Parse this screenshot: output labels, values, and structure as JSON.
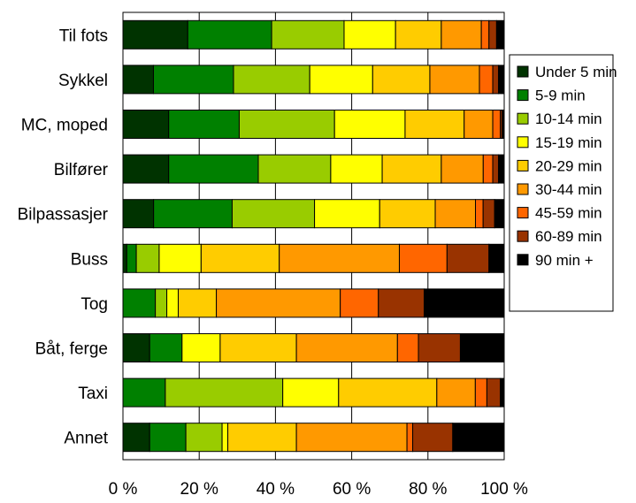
{
  "chart_data": {
    "type": "bar",
    "orientation": "horizontal",
    "stacked": "percent",
    "categories": [
      "Til fots",
      "Sykkel",
      "MC, moped",
      "Bilfører",
      "Bilpassasjer",
      "Buss",
      "Tog",
      "Båt, ferge",
      "Taxi",
      "Annet"
    ],
    "x_ticks": [
      "0 %",
      "20 %",
      "40 %",
      "60 %",
      "80 %",
      "100 %"
    ],
    "xlim": [
      0,
      100
    ],
    "grid": "vertical",
    "legend_position": "right",
    "series": [
      {
        "name": "Under 5 min",
        "color": "#003300",
        "values": [
          17,
          8,
          12,
          12,
          8,
          1,
          0,
          7,
          0,
          7
        ]
      },
      {
        "name": "5-9 min",
        "color": "#008000",
        "values": [
          22,
          21,
          18.5,
          23.5,
          20.5,
          2.5,
          8.5,
          8.5,
          11,
          9.5
        ]
      },
      {
        "name": "10-14 min",
        "color": "#99cc00",
        "values": [
          19,
          20,
          25,
          19,
          21.5,
          6,
          3,
          0,
          30.5,
          9.5
        ]
      },
      {
        "name": "15-19 min",
        "color": "#ffff00",
        "values": [
          13.5,
          16.5,
          18.5,
          13.5,
          17,
          11,
          3,
          10,
          14.5,
          1.5
        ]
      },
      {
        "name": "20-29 min",
        "color": "#ffcc00",
        "values": [
          12,
          15,
          15.5,
          15.5,
          14.5,
          20.5,
          10,
          20,
          25.5,
          18
        ]
      },
      {
        "name": "30-44 min",
        "color": "#ff9900",
        "values": [
          10.5,
          13,
          7.5,
          11,
          10.5,
          31.5,
          32.5,
          26.5,
          10,
          29
        ]
      },
      {
        "name": "45-59 min",
        "color": "#ff6600",
        "values": [
          2,
          3.5,
          2,
          2.5,
          2,
          12.5,
          10,
          5.5,
          3,
          1.5
        ]
      },
      {
        "name": "60-89 min",
        "color": "#993300",
        "values": [
          2,
          1.5,
          0.5,
          1.5,
          3,
          11,
          12,
          11,
          3.5,
          10.5
        ]
      },
      {
        "name": "90 min +",
        "color": "#000000",
        "values": [
          2,
          1.5,
          0.5,
          1.5,
          2.5,
          4,
          21,
          11.5,
          1,
          13.5
        ]
      }
    ]
  }
}
